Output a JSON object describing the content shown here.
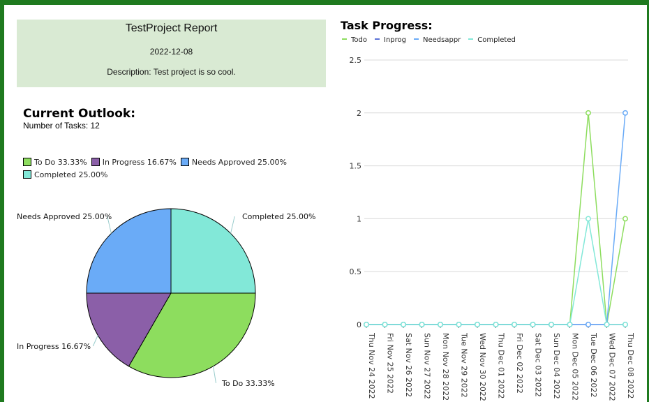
{
  "header": {
    "title": "TestProject Report",
    "date": "2022-12-08",
    "description": "Description: Test project is so cool."
  },
  "outlook": {
    "title": "Current Outlook:",
    "task_count": "Number of Tasks: 12"
  },
  "progress": {
    "title": "Task Progress:"
  },
  "chart_data": [
    {
      "type": "pie",
      "labels": [
        "To Do 33.33%",
        "In Progress 16.67%",
        "Needs Approved 25.00%",
        "Completed 25.00%"
      ],
      "values": [
        33.33,
        16.67,
        25.0,
        25.0
      ],
      "colors": [
        "#8ddd5e",
        "#8b5fa8",
        "#6aabf7",
        "#82e8d8"
      ],
      "legend": "top"
    },
    {
      "type": "line",
      "x": [
        "Thu Nov 24 2022",
        "Fri Nov 25 2022",
        "Sat Nov 26 2022",
        "Sun Nov 27 2022",
        "Mon Nov 28 2022",
        "Tue Nov 29 2022",
        "Wed Nov 30 2022",
        "Thu Dec 01 2022",
        "Fri Dec 02 2022",
        "Sat Dec 03 2022",
        "Sun Dec 04 2022",
        "Mon Dec 05 2022",
        "Tue Dec 06 2022",
        "Wed Dec 07 2022",
        "Thu Dec 08 2022"
      ],
      "series": [
        {
          "name": "Todo",
          "color": "#8ddd5e",
          "values": [
            0,
            0,
            0,
            0,
            0,
            0,
            0,
            0,
            0,
            0,
            0,
            0,
            2,
            0,
            1
          ]
        },
        {
          "name": "Inprog",
          "color": "#5b72d6",
          "values": [
            0,
            0,
            0,
            0,
            0,
            0,
            0,
            0,
            0,
            0,
            0,
            0,
            0,
            0,
            0
          ]
        },
        {
          "name": "Needsappr",
          "color": "#6aabf7",
          "values": [
            0,
            0,
            0,
            0,
            0,
            0,
            0,
            0,
            0,
            0,
            0,
            0,
            0,
            0,
            2
          ]
        },
        {
          "name": "Completed",
          "color": "#82e8d8",
          "values": [
            0,
            0,
            0,
            0,
            0,
            0,
            0,
            0,
            0,
            0,
            0,
            0,
            1,
            0,
            0
          ]
        }
      ],
      "y_ticks": [
        "0",
        "0.5",
        "1",
        "1.5",
        "2",
        "2.5"
      ],
      "ylim": [
        0,
        2.5
      ],
      "grid": true,
      "legend": "top-left"
    }
  ]
}
